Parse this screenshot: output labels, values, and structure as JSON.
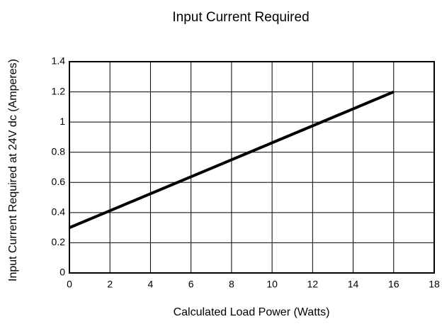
{
  "chart_data": {
    "type": "line",
    "title": "Input Current Required",
    "x_label": "Calculated Load Power (Watts)",
    "y_label": "Input Current Required at 24V dc (Amperes)",
    "x": [
      0,
      16
    ],
    "series": [
      {
        "name": null,
        "color": "#000000",
        "values": [
          0.3,
          1.2
        ]
      }
    ],
    "xlim": [
      0,
      18
    ],
    "xticks": [
      0,
      2,
      4,
      6,
      8,
      10,
      12,
      14,
      16,
      18
    ],
    "ylim": [
      0,
      1.4
    ],
    "yticks": [
      0,
      0.2,
      0.4,
      0.6,
      0.8,
      1,
      1.2,
      1.4
    ],
    "grid": true
  }
}
